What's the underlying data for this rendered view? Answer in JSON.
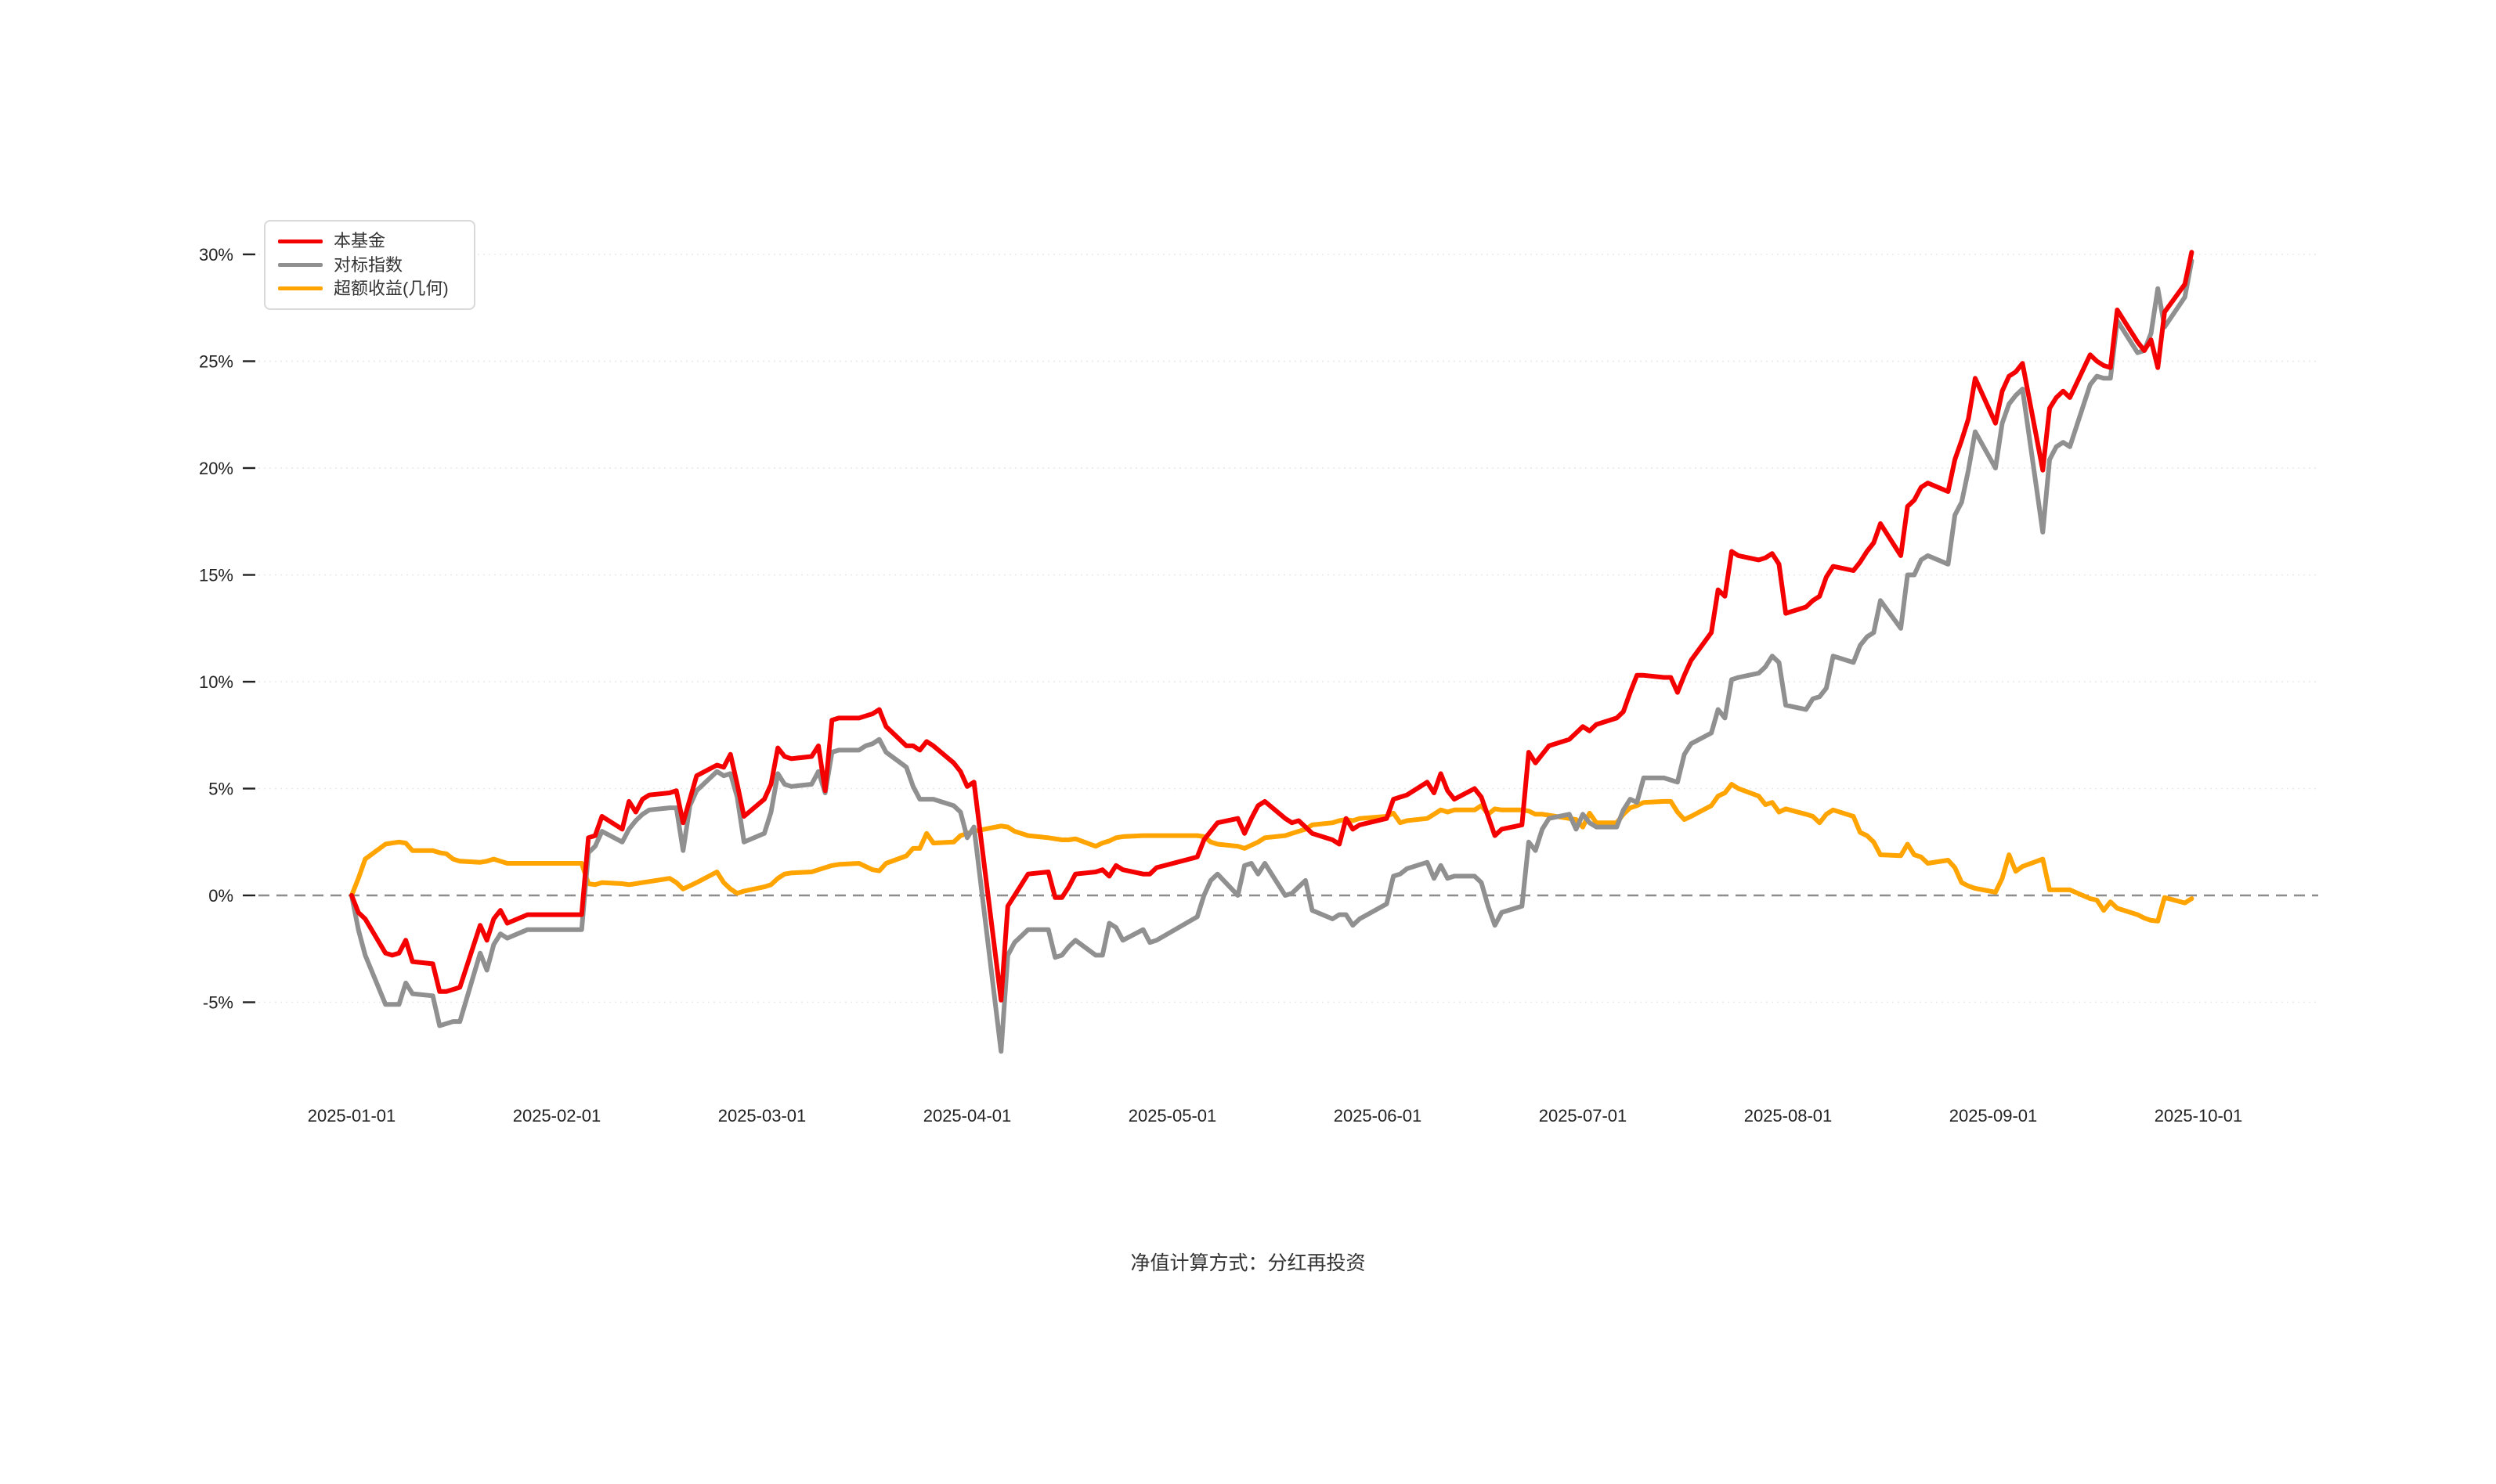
{
  "footer": {
    "text": "净值计算方式：分红再投资"
  },
  "colors": {
    "fund": "#f50000",
    "benchmark": "#909090",
    "excess": "#ffa400",
    "grid": "#e8e8e8",
    "zero_line": "#8c8c8c",
    "axis_text": "#222222",
    "tick_mark": "#222222"
  },
  "chart_data": {
    "type": "line",
    "title": "",
    "xlabel": "",
    "ylabel": "",
    "legend_position": "top-left",
    "grid": true,
    "y_ticks": [
      30,
      25,
      20,
      15,
      10,
      5,
      0,
      -5
    ],
    "y_tick_labels": [
      "30%",
      "25%",
      "20%",
      "15%",
      "10%",
      "5%",
      "0%",
      "-5%"
    ],
    "ylim": [
      -8.5,
      31.5
    ],
    "zero_line_dashed": true,
    "x_tick_labels": [
      "2025-01-01",
      "2025-02-01",
      "2025-03-01",
      "2025-04-01",
      "2025-05-01",
      "2025-06-01",
      "2025-07-01",
      "2025-08-01",
      "2025-09-01",
      "2025-10-01"
    ],
    "dates": [
      "2025-01-01",
      "2025-01-02",
      "2025-01-03",
      "2025-01-06",
      "2025-01-07",
      "2025-01-08",
      "2025-01-09",
      "2025-01-10",
      "2025-01-13",
      "2025-01-14",
      "2025-01-15",
      "2025-01-16",
      "2025-01-17",
      "2025-01-20",
      "2025-01-21",
      "2025-01-22",
      "2025-01-23",
      "2025-01-24",
      "2025-01-27",
      "2025-02-04",
      "2025-02-05",
      "2025-02-06",
      "2025-02-07",
      "2025-02-10",
      "2025-02-11",
      "2025-02-12",
      "2025-02-13",
      "2025-02-14",
      "2025-02-17",
      "2025-02-18",
      "2025-02-19",
      "2025-02-20",
      "2025-02-21",
      "2025-02-24",
      "2025-02-25",
      "2025-02-26",
      "2025-02-27",
      "2025-02-28",
      "2025-03-03",
      "2025-03-04",
      "2025-03-05",
      "2025-03-06",
      "2025-03-07",
      "2025-03-10",
      "2025-03-11",
      "2025-03-12",
      "2025-03-13",
      "2025-03-14",
      "2025-03-17",
      "2025-03-18",
      "2025-03-19",
      "2025-03-20",
      "2025-03-21",
      "2025-03-24",
      "2025-03-25",
      "2025-03-26",
      "2025-03-27",
      "2025-03-28",
      "2025-03-31",
      "2025-04-01",
      "2025-04-02",
      "2025-04-03",
      "2025-04-07",
      "2025-04-08",
      "2025-04-09",
      "2025-04-10",
      "2025-04-11",
      "2025-04-14",
      "2025-04-15",
      "2025-04-16",
      "2025-04-17",
      "2025-04-18",
      "2025-04-21",
      "2025-04-22",
      "2025-04-23",
      "2025-04-24",
      "2025-04-25",
      "2025-04-28",
      "2025-04-29",
      "2025-04-30",
      "2025-05-06",
      "2025-05-07",
      "2025-05-08",
      "2025-05-09",
      "2025-05-12",
      "2025-05-13",
      "2025-05-14",
      "2025-05-15",
      "2025-05-16",
      "2025-05-19",
      "2025-05-20",
      "2025-05-21",
      "2025-05-22",
      "2025-05-23",
      "2025-05-26",
      "2025-05-27",
      "2025-05-28",
      "2025-05-29",
      "2025-05-30",
      "2025-06-03",
      "2025-06-04",
      "2025-06-05",
      "2025-06-06",
      "2025-06-09",
      "2025-06-10",
      "2025-06-11",
      "2025-06-12",
      "2025-06-13",
      "2025-06-16",
      "2025-06-17",
      "2025-06-18",
      "2025-06-19",
      "2025-06-20",
      "2025-06-23",
      "2025-06-24",
      "2025-06-25",
      "2025-06-26",
      "2025-06-27",
      "2025-06-30",
      "2025-07-01",
      "2025-07-02",
      "2025-07-03",
      "2025-07-04",
      "2025-07-07",
      "2025-07-08",
      "2025-07-09",
      "2025-07-10",
      "2025-07-11",
      "2025-07-14",
      "2025-07-15",
      "2025-07-16",
      "2025-07-17",
      "2025-07-18",
      "2025-07-21",
      "2025-07-22",
      "2025-07-23",
      "2025-07-24",
      "2025-07-25",
      "2025-07-28",
      "2025-07-29",
      "2025-07-30",
      "2025-07-31",
      "2025-08-01",
      "2025-08-04",
      "2025-08-05",
      "2025-08-06",
      "2025-08-07",
      "2025-08-08",
      "2025-08-11",
      "2025-08-12",
      "2025-08-13",
      "2025-08-14",
      "2025-08-15",
      "2025-08-18",
      "2025-08-19",
      "2025-08-20",
      "2025-08-21",
      "2025-08-22",
      "2025-08-25",
      "2025-08-26",
      "2025-08-27",
      "2025-08-28",
      "2025-08-29",
      "2025-09-01",
      "2025-09-02",
      "2025-09-03",
      "2025-09-04",
      "2025-09-05",
      "2025-09-08",
      "2025-09-09",
      "2025-09-10",
      "2025-09-11",
      "2025-09-12",
      "2025-09-15",
      "2025-09-16",
      "2025-09-17",
      "2025-09-18",
      "2025-09-19",
      "2025-09-22",
      "2025-09-23",
      "2025-09-24",
      "2025-09-25",
      "2025-09-26",
      "2025-09-29",
      "2025-09-30"
    ],
    "series": [
      {
        "name": "本基金",
        "key": "fund",
        "color_key": "fund",
        "values": [
          0,
          -0.8,
          -1.1,
          -2.7,
          -2.8,
          -2.7,
          -2.1,
          -3.1,
          -3.2,
          -4.5,
          -4.5,
          -4.4,
          -4.3,
          -1.4,
          -2.1,
          -1.1,
          -0.7,
          -1.3,
          -0.9,
          -0.9,
          2.7,
          2.8,
          3.7,
          3.1,
          4.4,
          3.9,
          4.5,
          4.7,
          4.8,
          4.9,
          3.4,
          4.5,
          5.6,
          6.1,
          6.0,
          6.6,
          5.2,
          3.7,
          4.5,
          5.2,
          6.9,
          6.5,
          6.4,
          6.5,
          7.0,
          4.9,
          8.2,
          8.3,
          8.3,
          8.4,
          8.5,
          8.7,
          7.9,
          7.0,
          7.0,
          6.8,
          7.2,
          7.0,
          6.2,
          5.8,
          5.1,
          5.3,
          -4.9,
          -0.5,
          0,
          0.5,
          1.0,
          1.1,
          -0.1,
          -0.1,
          0.4,
          1.0,
          1.1,
          1.2,
          0.9,
          1.4,
          1.2,
          1.0,
          1.0,
          1.3,
          1.8,
          2.6,
          3.0,
          3.4,
          3.6,
          2.9,
          3.6,
          4.2,
          4.4,
          3.6,
          3.4,
          3.5,
          3.2,
          2.9,
          2.6,
          2.4,
          3.6,
          3.1,
          3.3,
          3.6,
          4.5,
          4.6,
          4.7,
          5.3,
          4.8,
          5.7,
          4.9,
          4.5,
          5.0,
          4.6,
          3.7,
          2.8,
          3.1,
          3.3,
          6.7,
          6.2,
          6.6,
          7.0,
          7.3,
          7.6,
          7.9,
          7.7,
          8.0,
          8.3,
          8.6,
          9.5,
          10.3,
          10.3,
          10.2,
          10.2,
          9.5,
          10.3,
          11.0,
          12.3,
          14.3,
          14.0,
          16.1,
          15.9,
          15.7,
          15.8,
          16.0,
          15.5,
          13.2,
          13.5,
          13.8,
          14.0,
          14.9,
          15.4,
          15.2,
          15.6,
          16.1,
          16.5,
          17.4,
          15.9,
          18.2,
          18.5,
          19.1,
          19.3,
          18.9,
          20.4,
          21.3,
          22.3,
          24.2,
          22.1,
          23.6,
          24.3,
          24.5,
          24.9,
          19.9,
          22.8,
          23.3,
          23.6,
          23.3,
          25.3,
          25.0,
          24.8,
          24.7,
          27.4,
          25.9,
          25.5,
          26.0,
          24.7,
          27.3,
          28.6,
          30.1
        ]
      },
      {
        "name": "对标指数",
        "key": "benchmark",
        "color_key": "benchmark",
        "values": [
          0,
          -1.6,
          -2.8,
          -5.1,
          -5.1,
          -5.1,
          -4.1,
          -4.6,
          -4.7,
          -6.1,
          -6.0,
          -5.9,
          -5.9,
          -2.7,
          -3.5,
          -2.3,
          -1.8,
          -2.0,
          -1.6,
          -1.6,
          2.0,
          2.3,
          3.0,
          2.5,
          3.1,
          3.5,
          3.8,
          4.0,
          4.1,
          4.1,
          2.1,
          4.2,
          4.9,
          5.8,
          5.6,
          5.7,
          4.6,
          2.5,
          2.9,
          3.9,
          5.7,
          5.2,
          5.1,
          5.2,
          5.8,
          4.8,
          6.7,
          6.8,
          6.8,
          7.0,
          7.1,
          7.3,
          6.7,
          6.0,
          5.1,
          4.5,
          4.5,
          4.5,
          4.2,
          3.9,
          2.7,
          3.2,
          -7.3,
          -2.8,
          -2.2,
          -1.9,
          -1.6,
          -1.6,
          -2.9,
          -2.8,
          -2.4,
          -2.1,
          -2.8,
          -2.8,
          -1.3,
          -1.5,
          -2.1,
          -1.6,
          -2.2,
          -2.1,
          -1.0,
          0.0,
          0.7,
          1.0,
          0.0,
          1.4,
          1.5,
          1.0,
          1.5,
          0.0,
          0.1,
          0.4,
          0.7,
          -0.7,
          -1.1,
          -0.9,
          -0.9,
          -1.4,
          -1.1,
          -0.4,
          0.9,
          1.0,
          1.25,
          1.55,
          0.8,
          1.4,
          0.8,
          0.9,
          0.9,
          0.6,
          -0.5,
          -1.4,
          -0.8,
          -0.5,
          2.5,
          2.1,
          3.1,
          3.6,
          3.8,
          3.1,
          3.8,
          3.4,
          3.2,
          3.2,
          4.0,
          4.5,
          4.35,
          5.5,
          5.5,
          5.4,
          5.3,
          6.6,
          7.1,
          7.6,
          8.7,
          8.3,
          10.1,
          10.2,
          10.4,
          10.7,
          11.2,
          10.9,
          8.9,
          8.7,
          9.2,
          9.3,
          9.7,
          11.2,
          10.9,
          11.7,
          12.1,
          12.3,
          13.8,
          12.5,
          15.0,
          15.0,
          15.7,
          15.9,
          15.5,
          17.8,
          18.4,
          19.9,
          21.7,
          20.0,
          22.1,
          23.0,
          23.4,
          23.7,
          17.0,
          20.4,
          21.0,
          21.2,
          21.0,
          23.9,
          24.3,
          24.2,
          24.2,
          26.9,
          25.4,
          25.5,
          26.3,
          28.4,
          26.6,
          28.0,
          29.7
        ]
      },
      {
        "name": "超额收益(几何)",
        "key": "excess",
        "color_key": "excess",
        "values": [
          0,
          0.8,
          1.7,
          2.4,
          2.45,
          2.5,
          2.45,
          2.1,
          2.1,
          2.0,
          1.95,
          1.7,
          1.6,
          1.55,
          1.6,
          1.7,
          1.6,
          1.5,
          1.5,
          1.5,
          0.55,
          0.5,
          0.6,
          0.55,
          0.5,
          0.55,
          0.6,
          0.65,
          0.8,
          0.6,
          0.3,
          0.45,
          0.6,
          1.1,
          0.6,
          0.3,
          0.1,
          0.2,
          0.4,
          0.5,
          0.8,
          1.0,
          1.05,
          1.1,
          1.2,
          1.3,
          1.4,
          1.45,
          1.5,
          1.35,
          1.2,
          1.15,
          1.5,
          1.85,
          2.2,
          2.2,
          2.9,
          2.45,
          2.5,
          2.8,
          2.9,
          3.0,
          3.25,
          3.2,
          3.0,
          2.9,
          2.8,
          2.7,
          2.65,
          2.6,
          2.6,
          2.65,
          2.3,
          2.45,
          2.55,
          2.7,
          2.75,
          2.8,
          2.8,
          2.8,
          2.8,
          2.75,
          2.5,
          2.4,
          2.3,
          2.2,
          2.35,
          2.5,
          2.7,
          2.8,
          2.9,
          3.0,
          3.1,
          3.3,
          3.4,
          3.5,
          3.55,
          3.5,
          3.6,
          3.7,
          3.85,
          3.4,
          3.5,
          3.6,
          3.8,
          4.0,
          3.9,
          4.0,
          4.0,
          4.2,
          3.8,
          4.05,
          4.0,
          4.0,
          3.95,
          3.8,
          3.8,
          3.75,
          3.6,
          3.55,
          3.2,
          3.85,
          3.4,
          3.4,
          3.8,
          4.1,
          4.2,
          4.35,
          4.4,
          4.4,
          3.9,
          3.55,
          3.7,
          4.2,
          4.65,
          4.8,
          5.2,
          5.0,
          4.65,
          4.25,
          4.35,
          3.9,
          4.05,
          3.8,
          3.7,
          3.4,
          3.8,
          4.0,
          3.7,
          2.95,
          2.8,
          2.5,
          1.9,
          1.86,
          2.4,
          1.9,
          1.8,
          1.5,
          1.65,
          1.3,
          0.6,
          0.44,
          0.33,
          0.15,
          0.8,
          1.9,
          1.13,
          1.35,
          1.7,
          0.26,
          0.26,
          0.26,
          0.26,
          -0.15,
          -0.22,
          -0.7,
          -0.3,
          -0.6,
          -0.9,
          -1.06,
          -1.17,
          -1.2,
          -0.1,
          -0.35,
          -0.15
        ]
      }
    ]
  },
  "layout_note": ""
}
